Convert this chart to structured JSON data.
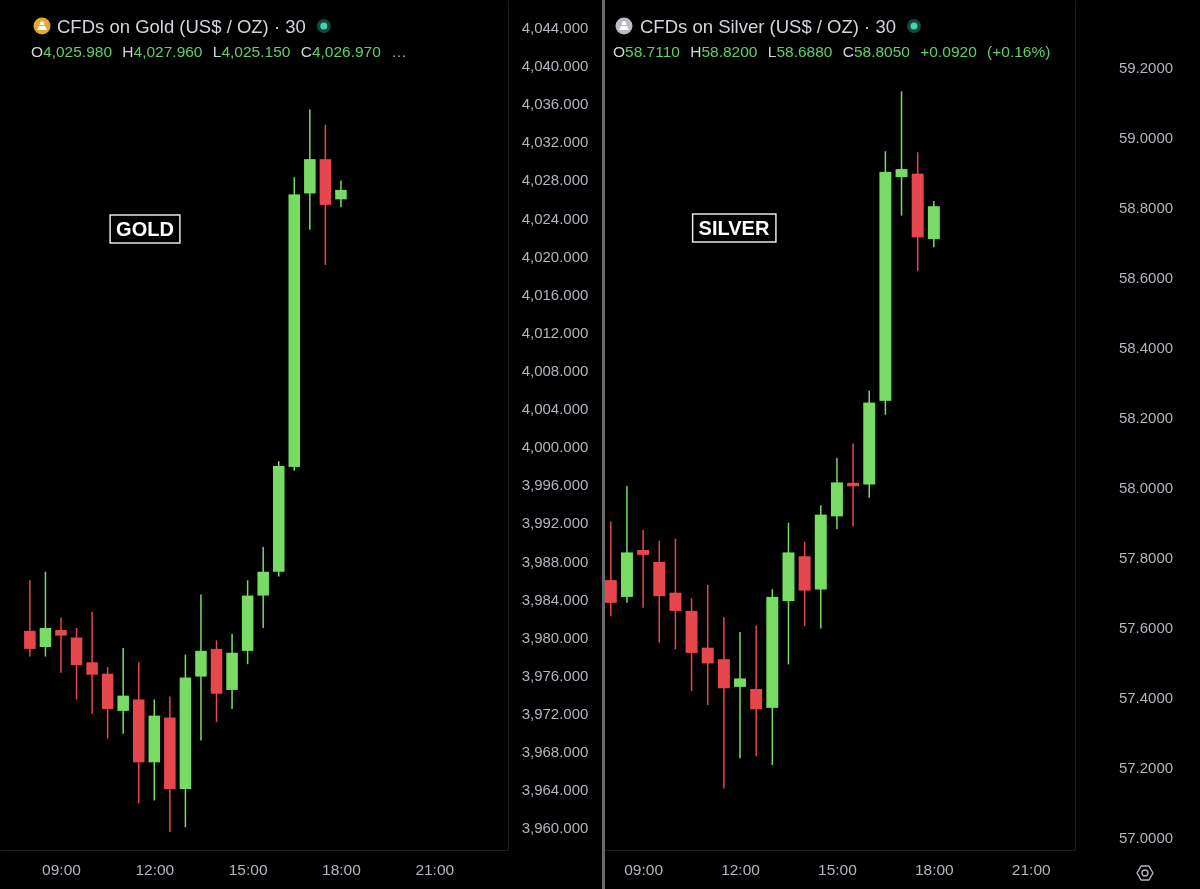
{
  "chart_data": [
    {
      "type": "candlestick",
      "title": "CFDs on Gold (US$ / OZ) · 30",
      "annotations": [
        "O4,025.980 H4,027.960 L4,025.150 C4,026.970 …",
        "GOLD"
      ],
      "x": [
        8,
        8.5,
        9,
        9.5,
        10,
        10.5,
        11,
        11.5,
        12,
        12.5,
        13,
        13.5,
        14,
        14.5,
        15,
        15.5,
        16,
        16.5,
        17,
        17.5,
        18
      ],
      "ohlc": [
        [
          3980.7,
          3986.0,
          3978.0,
          3978.8
        ],
        [
          3979.0,
          3986.9,
          3978.0,
          3981.0
        ],
        [
          3980.8,
          3982.1,
          3976.3,
          3980.2
        ],
        [
          3980.0,
          3981.0,
          3973.5,
          3977.1
        ],
        [
          3977.4,
          3982.7,
          3972.0,
          3976.1
        ],
        [
          3976.2,
          3976.9,
          3969.4,
          3972.5
        ],
        [
          3972.3,
          3978.9,
          3969.9,
          3973.9
        ],
        [
          3973.5,
          3977.4,
          3962.6,
          3966.9
        ],
        [
          3966.9,
          3973.5,
          3962.9,
          3971.8
        ],
        [
          3971.6,
          3973.8,
          3959.6,
          3964.1
        ],
        [
          3964.1,
          3978.2,
          3960.1,
          3975.8
        ],
        [
          3975.9,
          3984.5,
          3969.2,
          3978.6
        ],
        [
          3978.8,
          3979.7,
          3971.1,
          3974.1
        ],
        [
          3974.5,
          3980.4,
          3972.5,
          3978.4
        ],
        [
          3978.6,
          3986.0,
          3977.2,
          3984.4
        ],
        [
          3984.4,
          3989.5,
          3981.0,
          3986.9
        ],
        [
          3986.9,
          3998.5,
          3986.4,
          3998.0
        ],
        [
          3997.9,
          4028.3,
          3997.5,
          4026.5
        ],
        [
          4026.6,
          4035.4,
          4022.8,
          4030.2
        ],
        [
          4030.2,
          4033.8,
          4019.1,
          4025.4
        ],
        [
          4025.98,
          4027.96,
          4025.15,
          4026.97
        ]
      ],
      "colors": [
        "#e5474c",
        "#78dc64",
        "#e5474c",
        "#e5474c",
        "#e5474c",
        "#e5474c",
        "#78dc64",
        "#e5474c",
        "#78dc64",
        "#e5474c",
        "#78dc64",
        "#78dc64",
        "#e5474c",
        "#78dc64",
        "#78dc64",
        "#78dc64",
        "#78dc64",
        "#78dc64",
        "#78dc64",
        "#e5474c",
        "#78dc64"
      ],
      "xlim": [
        7.04,
        23.37
      ],
      "xticks": [
        {
          "value": 9,
          "label": "09:00"
        },
        {
          "value": 12,
          "label": "12:00"
        },
        {
          "value": 15,
          "label": "15:00"
        },
        {
          "value": 18,
          "label": "18:00"
        },
        {
          "value": 21,
          "label": "21:00"
        }
      ],
      "ylim": [
        3957.7,
        4046.9
      ],
      "yticks": [
        {
          "value": 4044,
          "label": "4,044.000"
        },
        {
          "value": 4040,
          "label": "4,040.000"
        },
        {
          "value": 4036,
          "label": "4,036.000"
        },
        {
          "value": 4032,
          "label": "4,032.000"
        },
        {
          "value": 4028,
          "label": "4,028.000"
        },
        {
          "value": 4024,
          "label": "4,024.000"
        },
        {
          "value": 4020,
          "label": "4,020.000"
        },
        {
          "value": 4016,
          "label": "4,016.000"
        },
        {
          "value": 4012,
          "label": "4,012.000"
        },
        {
          "value": 4008,
          "label": "4,008.000"
        },
        {
          "value": 4004,
          "label": "4,004.000"
        },
        {
          "value": 4000,
          "label": "4,000.000"
        },
        {
          "value": 3996,
          "label": "3,996.000"
        },
        {
          "value": 3992,
          "label": "3,992.000"
        },
        {
          "value": 3988,
          "label": "3,988.000"
        },
        {
          "value": 3984,
          "label": "3,984.000"
        },
        {
          "value": 3980,
          "label": "3,980.000"
        },
        {
          "value": 3976,
          "label": "3,976.000"
        },
        {
          "value": 3972,
          "label": "3,972.000"
        },
        {
          "value": 3968,
          "label": "3,968.000"
        },
        {
          "value": 3964,
          "label": "3,964.000"
        },
        {
          "value": 3960,
          "label": "3,960.000"
        }
      ]
    },
    {
      "type": "candlestick",
      "title": "CFDs on Silver (US$ / OZ) · 30",
      "annotations": [
        "O58.7110 H58.8200 L58.6880 C58.8050 +0.0920 (+0.16%)",
        "SILVER"
      ],
      "x": [
        8,
        8.5,
        9,
        9.5,
        10,
        10.5,
        11,
        11.5,
        12,
        12.5,
        13,
        13.5,
        14,
        14.5,
        15,
        15.5,
        16,
        16.5,
        17,
        17.5,
        18
      ],
      "ohlc": [
        [
          57.737,
          57.904,
          57.634,
          57.672
        ],
        [
          57.689,
          58.006,
          57.672,
          57.816
        ],
        [
          57.823,
          57.88,
          57.658,
          57.809
        ],
        [
          57.789,
          57.849,
          57.558,
          57.691
        ],
        [
          57.701,
          57.855,
          57.539,
          57.649
        ],
        [
          57.649,
          57.685,
          57.42,
          57.529
        ],
        [
          57.544,
          57.723,
          57.38,
          57.499
        ],
        [
          57.511,
          57.631,
          57.142,
          57.428
        ],
        [
          57.432,
          57.589,
          57.228,
          57.456
        ],
        [
          57.426,
          57.607,
          57.234,
          57.368
        ],
        [
          57.372,
          57.711,
          57.209,
          57.689
        ],
        [
          57.677,
          57.901,
          57.496,
          57.816
        ],
        [
          57.805,
          57.847,
          57.605,
          57.707
        ],
        [
          57.71,
          57.951,
          57.599,
          57.924
        ],
        [
          57.919,
          58.086,
          57.882,
          58.016
        ],
        [
          58.015,
          58.127,
          57.89,
          58.005
        ],
        [
          58.01,
          58.278,
          57.972,
          58.244
        ],
        [
          58.249,
          58.962,
          58.209,
          58.903
        ],
        [
          58.888,
          59.133,
          58.778,
          58.911
        ],
        [
          58.898,
          58.959,
          58.62,
          58.716
        ],
        [
          58.711,
          58.82,
          58.688,
          58.805
        ]
      ],
      "colors": [
        "#e5474c",
        "#78dc64",
        "#e5474c",
        "#e5474c",
        "#e5474c",
        "#e5474c",
        "#e5474c",
        "#e5474c",
        "#78dc64",
        "#e5474c",
        "#78dc64",
        "#78dc64",
        "#e5474c",
        "#78dc64",
        "#78dc64",
        "#e5474c",
        "#78dc64",
        "#78dc64",
        "#78dc64",
        "#e5474c",
        "#78dc64"
      ],
      "xlim": [
        7.82,
        22.37
      ],
      "xticks": [
        {
          "value": 9,
          "label": "09:00"
        },
        {
          "value": 12,
          "label": "12:00"
        },
        {
          "value": 15,
          "label": "15:00"
        },
        {
          "value": 18,
          "label": "18:00"
        },
        {
          "value": 21,
          "label": "21:00"
        }
      ],
      "ylim": [
        56.966,
        59.394
      ],
      "yticks": [
        {
          "value": 59.2,
          "label": "59.2000"
        },
        {
          "value": 59.0,
          "label": "59.0000"
        },
        {
          "value": 58.8,
          "label": "58.8000"
        },
        {
          "value": 58.6,
          "label": "58.6000"
        },
        {
          "value": 58.4,
          "label": "58.4000"
        },
        {
          "value": 58.2,
          "label": "58.2000"
        },
        {
          "value": 58.0,
          "label": "58.0000"
        },
        {
          "value": 57.8,
          "label": "57.8000"
        },
        {
          "value": 57.6,
          "label": "57.6000"
        },
        {
          "value": 57.4,
          "label": "57.4000"
        },
        {
          "value": 57.2,
          "label": "57.2000"
        },
        {
          "value": 57.0,
          "label": "57.0000"
        }
      ]
    }
  ]
}
